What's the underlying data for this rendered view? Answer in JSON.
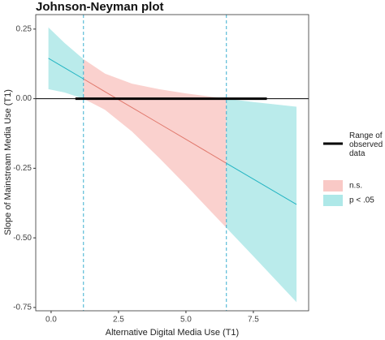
{
  "chart_data": {
    "type": "johnson-neyman",
    "title": "Johnson-Neyman plot",
    "xlabel": "Alternative Digital Media Use (T1)",
    "ylabel": "Slope of Mainstream Media Use (T1)",
    "x": [
      -0.1,
      0.5,
      1.2,
      2.0,
      3.0,
      4.0,
      5.0,
      6.5,
      7.5,
      9.1
    ],
    "estimate": [
      0.145,
      0.111,
      0.071,
      0.025,
      -0.032,
      -0.089,
      -0.146,
      -0.232,
      -0.289,
      -0.38
    ],
    "lower": [
      0.034,
      0.022,
      0.0,
      -0.04,
      -0.118,
      -0.212,
      -0.311,
      -0.464,
      -0.566,
      -0.731
    ],
    "upper": [
      0.256,
      0.2,
      0.142,
      0.09,
      0.054,
      0.034,
      0.019,
      0.0,
      -0.012,
      -0.029
    ],
    "jn_points": [
      1.2,
      6.5
    ],
    "jn_color": "#3aaed0",
    "hline": 0,
    "observed_range": {
      "name": "Range of observed data",
      "values": [
        0.9,
        8.0
      ],
      "color": "#000000"
    },
    "regions": [
      {
        "name": "n.s.",
        "color": "#f9c9c6",
        "line_color": "#e0786c"
      },
      {
        "name": "p < .05",
        "color": "#aee8e8",
        "line_color": "#22b4c2"
      }
    ],
    "xlim": [
      -0.57,
      9.55
    ],
    "xticks": [
      {
        "value": 0,
        "label": "0.0"
      },
      2.5,
      {
        "value": 5,
        "label": "5.0"
      },
      7.5
    ],
    "ylim": [
      -0.762,
      0.302
    ],
    "yticks": [
      {
        "value": 0.25,
        "label": "0.25"
      },
      {
        "value": 0,
        "label": "0.00"
      },
      {
        "value": -0.25,
        "label": "-0.25"
      },
      {
        "value": -0.5,
        "label": "-0.50"
      },
      {
        "value": -0.75,
        "label": "-0.75"
      }
    ]
  }
}
